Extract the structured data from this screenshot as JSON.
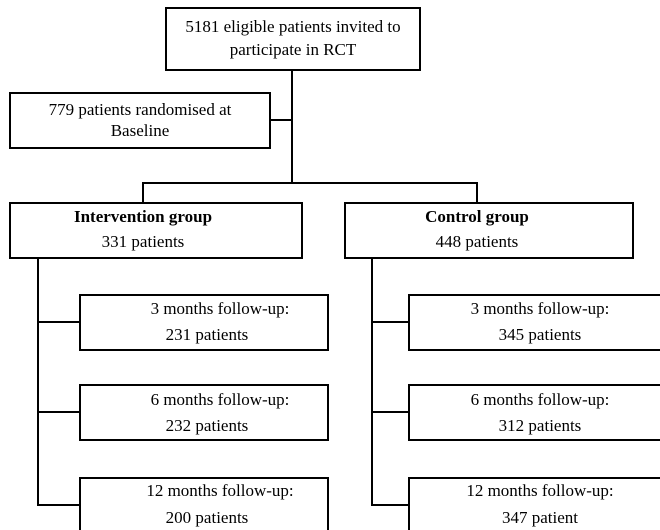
{
  "top_box": {
    "lines": [
      "5181 eligible patients invited to",
      "participate in RCT"
    ]
  },
  "randomised_box": {
    "lines": [
      "779 patients randomised at",
      "Baseline"
    ]
  },
  "groups": [
    {
      "title": "Intervention group",
      "count": "331 patients",
      "follow_ups": [
        {
          "label": "3 months follow-up:",
          "count": "231 patients"
        },
        {
          "label": "6 months follow-up:",
          "count": "232 patients"
        },
        {
          "label": "12 months follow-up:",
          "count": "200 patients"
        }
      ]
    },
    {
      "title": "Control group",
      "count": "448 patients",
      "follow_ups": [
        {
          "label": "3 months follow-up:",
          "count": "345 patients"
        },
        {
          "label": "6 months follow-up:",
          "count": "312 patients"
        },
        {
          "label": "12 months follow-up:",
          "count": "347 patient"
        }
      ]
    }
  ]
}
